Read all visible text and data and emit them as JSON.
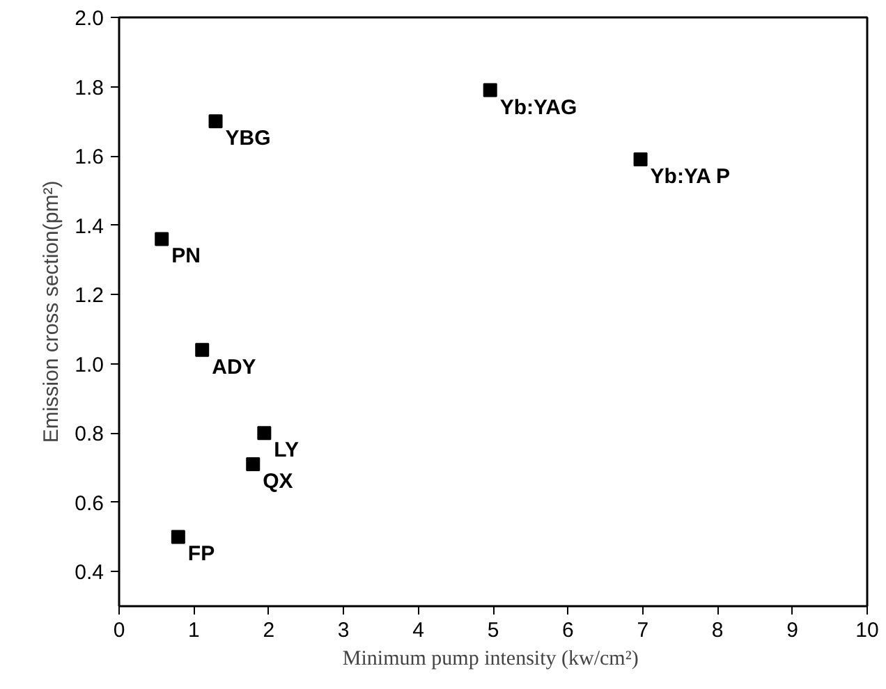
{
  "chart_data": {
    "type": "scatter",
    "xlabel": "Minimum pump intensity  (kw/cm²)",
    "ylabel": "Emission cross section(pm²)",
    "x": [
      1.29,
      4.96,
      6.97,
      0.57,
      1.11,
      1.94,
      1.79,
      0.79
    ],
    "series": [
      {
        "color": "#000000",
        "values": [
          1.7,
          1.79,
          1.59,
          1.36,
          1.04,
          0.8,
          0.71,
          0.5
        ]
      }
    ],
    "marker": "square",
    "xlim": [
      0,
      10
    ],
    "xticks": [
      0,
      1,
      2,
      3,
      4,
      5,
      6,
      7,
      8,
      9,
      10
    ],
    "ylim": [
      0.3,
      2.0
    ],
    "yticks": [
      {
        "value": 0.4,
        "label": "0.4"
      },
      {
        "value": 0.6,
        "label": "0.6"
      },
      {
        "value": 0.8,
        "label": "0.8"
      },
      {
        "value": 1.0,
        "label": "1.0"
      },
      {
        "value": 1.2,
        "label": "1.2"
      },
      {
        "value": 1.4,
        "label": "1.4"
      },
      {
        "value": 1.6,
        "label": "1.6"
      },
      {
        "value": 1.8,
        "label": "1.8"
      },
      {
        "value": 2.0,
        "label": "2.0"
      }
    ],
    "annotations": [
      {
        "text": "YBG",
        "x": 1.29,
        "y": 1.7
      },
      {
        "text": "Yb:YAG",
        "x": 4.96,
        "y": 1.79
      },
      {
        "text": "Yb:YA P",
        "x": 6.97,
        "y": 1.59
      },
      {
        "text": "PN",
        "x": 0.57,
        "y": 1.36
      },
      {
        "text": "ADY",
        "x": 1.11,
        "y": 1.04
      },
      {
        "text": "LY",
        "x": 1.94,
        "y": 0.8
      },
      {
        "text": "QX",
        "x": 1.79,
        "y": 0.71
      },
      {
        "text": "FP",
        "x": 0.79,
        "y": 0.5
      }
    ]
  }
}
